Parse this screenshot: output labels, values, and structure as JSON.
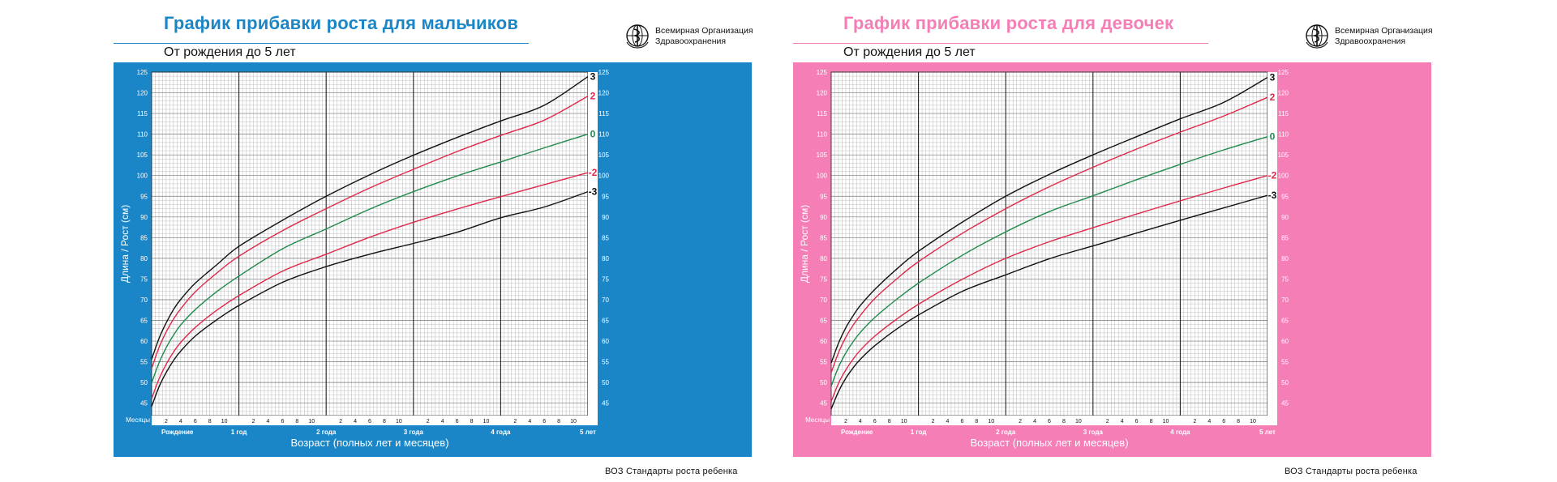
{
  "footer": "ВОЗ Стандарты роста ребенка",
  "who": {
    "line1": "Всемирная Организация",
    "line2": "Здравоохранения",
    "emblem": "who-emblem-icon"
  },
  "colors": {
    "boys": "#1a86c8",
    "girls": "#f57eb6",
    "sd0": "#1f8a4c",
    "sd2": "#e0284a",
    "sd3": "#111111"
  },
  "axis": {
    "ylabel": "Длина / Рост (см)",
    "xlabel": "Возраст (полных лет и месяцев)",
    "months_label": "Месяцы",
    "year_labels": [
      "Рождение",
      "1 год",
      "2 года",
      "3 года",
      "4 года",
      "5 лет"
    ],
    "month_ticks": [
      "2",
      "4",
      "6",
      "8",
      "10"
    ]
  },
  "chart_data": [
    {
      "type": "line",
      "title": "График прибавки роста для мальчиков",
      "subtitle": "От рождения до 5 лет",
      "xlabel": "Возраст (полных лет и месяцев)",
      "ylabel": "Длина / Рост (см)",
      "xlim": [
        0,
        60
      ],
      "ylim": [
        42,
        125
      ],
      "yticks": [
        45,
        50,
        55,
        60,
        65,
        70,
        75,
        80,
        85,
        90,
        95,
        100,
        105,
        110,
        115,
        120,
        125
      ],
      "grid": true,
      "x": [
        0,
        1,
        2,
        3,
        4,
        6,
        9,
        12,
        18,
        24,
        30,
        36,
        42,
        48,
        54,
        60
      ],
      "series": [
        {
          "name": "3",
          "values": [
            55.6,
            60.6,
            64.4,
            67.6,
            70.1,
            74.0,
            78.5,
            82.9,
            89.2,
            95.0,
            100.2,
            104.9,
            109.2,
            113.2,
            117.0,
            123.9
          ]
        },
        {
          "name": "2",
          "values": [
            53.4,
            58.4,
            62.2,
            65.3,
            67.8,
            71.9,
            76.5,
            80.5,
            86.7,
            92.0,
            97.0,
            101.5,
            105.8,
            109.7,
            113.4,
            119.2
          ]
        },
        {
          "name": "0",
          "values": [
            49.9,
            54.7,
            58.4,
            61.4,
            63.9,
            67.6,
            72.0,
            75.7,
            82.3,
            87.1,
            91.9,
            96.1,
            99.9,
            103.3,
            106.7,
            110.0
          ]
        },
        {
          "name": "-2",
          "values": [
            46.1,
            50.8,
            54.4,
            57.3,
            59.7,
            63.3,
            67.5,
            71.0,
            76.9,
            81.0,
            85.1,
            88.7,
            91.9,
            94.9,
            97.8,
            100.7
          ]
        },
        {
          "name": "-3",
          "values": [
            44.2,
            48.9,
            52.4,
            55.3,
            57.6,
            61.2,
            65.2,
            68.6,
            74.2,
            78.0,
            81.0,
            83.6,
            86.3,
            89.8,
            92.4,
            96.1
          ]
        }
      ]
    },
    {
      "type": "line",
      "title": "График прибавки роста для девочек",
      "subtitle": "От рождения до 5 лет",
      "xlabel": "Возраст (полных лет и месяцев)",
      "ylabel": "Длина / Рост (см)",
      "xlim": [
        0,
        60
      ],
      "ylim": [
        42,
        125
      ],
      "yticks": [
        45,
        50,
        55,
        60,
        65,
        70,
        75,
        80,
        85,
        90,
        95,
        100,
        105,
        110,
        115,
        120,
        125
      ],
      "grid": true,
      "x": [
        0,
        1,
        2,
        3,
        4,
        6,
        9,
        12,
        18,
        24,
        30,
        36,
        42,
        48,
        54,
        60
      ],
      "series": [
        {
          "name": "3",
          "values": [
            54.7,
            59.5,
            63.2,
            66.1,
            68.6,
            72.5,
            77.4,
            81.7,
            88.7,
            95.0,
            100.3,
            105.0,
            109.4,
            113.7,
            117.7,
            123.7
          ]
        },
        {
          "name": "2",
          "values": [
            52.4,
            57.2,
            60.9,
            63.8,
            66.2,
            70.3,
            75.0,
            79.2,
            86.0,
            92.0,
            97.3,
            102.0,
            106.4,
            110.5,
            114.4,
            118.9
          ]
        },
        {
          "name": "0",
          "values": [
            49.1,
            53.7,
            57.1,
            59.8,
            62.1,
            65.7,
            70.1,
            74.0,
            80.7,
            86.4,
            91.3,
            95.1,
            99.0,
            102.7,
            106.2,
            109.4
          ]
        },
        {
          "name": "-2",
          "values": [
            45.4,
            49.8,
            53.0,
            55.6,
            57.8,
            61.2,
            65.3,
            68.9,
            74.9,
            80.0,
            84.0,
            87.4,
            90.7,
            93.9,
            97.0,
            100.0
          ]
        },
        {
          "name": "-3",
          "values": [
            43.6,
            47.8,
            51.0,
            53.5,
            55.6,
            58.9,
            62.9,
            66.3,
            72.0,
            76.0,
            79.9,
            83.0,
            86.1,
            89.2,
            92.2,
            95.2
          ]
        }
      ]
    }
  ]
}
